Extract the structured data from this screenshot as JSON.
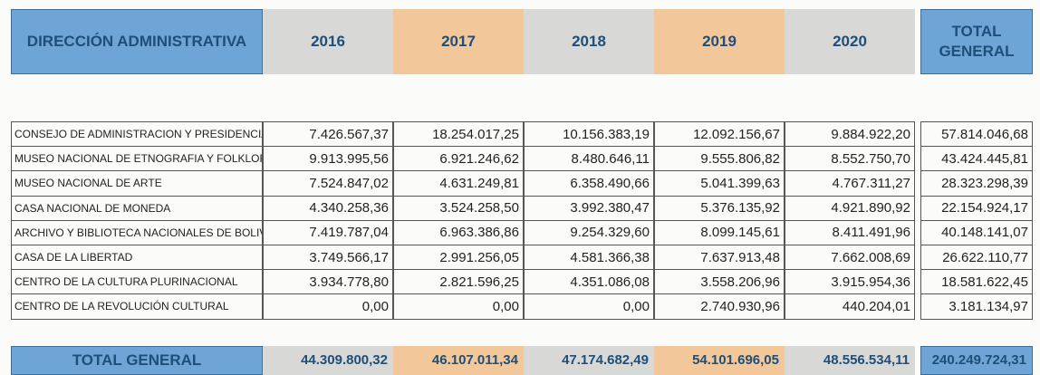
{
  "header": {
    "title": "DIRECCIÓN ADMINISTRATIVA",
    "years": [
      "2016",
      "2017",
      "2018",
      "2019",
      "2020"
    ],
    "total": "TOTAL GENERAL"
  },
  "table": {
    "rows": [
      [
        "CONSEJO DE ADMINISTRACION Y PRESIDENCIA",
        "7.426.567,37",
        "18.254.017,25",
        "10.156.383,19",
        "12.092.156,67",
        "9.884.922,20",
        "57.814.046,68"
      ],
      [
        "MUSEO NACIONAL DE ETNOGRAFIA Y FOLKLORE",
        "9.913.995,56",
        "6.921.246,62",
        "8.480.646,11",
        "9.555.806,82",
        "8.552.750,70",
        "43.424.445,81"
      ],
      [
        "MUSEO NACIONAL DE ARTE",
        "7.524.847,02",
        "4.631.249,81",
        "6.358.490,66",
        "5.041.399,63",
        "4.767.311,27",
        "28.323.298,39"
      ],
      [
        "CASA NACIONAL DE MONEDA",
        "4.340.258,36",
        "3.524.258,50",
        "3.992.380,47",
        "5.376.135,92",
        "4.921.890,92",
        "22.154.924,17"
      ],
      [
        "ARCHIVO Y BIBLIOTECA NACIONALES DE BOLIVIA",
        "7.419.787,04",
        "6.963.386,86",
        "9.254.329,60",
        "8.099.145,61",
        "8.411.491,96",
        "40.148.141,07"
      ],
      [
        "CASA DE LA LIBERTAD",
        "3.749.566,17",
        "2.991.256,05",
        "4.581.366,38",
        "7.637.913,48",
        "7.662.008,69",
        "26.622.110,77"
      ],
      [
        "CENTRO DE LA CULTURA PLURINACIONAL",
        "3.934.778,80",
        "2.821.596,25",
        "4.351.086,08",
        "3.558.206,96",
        "3.915.954,36",
        "18.581.622,45"
      ],
      [
        "CENTRO DE LA REVOLUCIÓN CULTURAL",
        "0,00",
        "0,00",
        "0,00",
        "2.740.930,96",
        "440.204,01",
        "3.181.134,97"
      ]
    ],
    "total_row": [
      "TOTAL GENERAL",
      "44.309.800,32",
      "46.107.011,34",
      "47.174.682,49",
      "54.101.696,05",
      "48.556.534,11",
      "240.249.724,31"
    ]
  }
}
